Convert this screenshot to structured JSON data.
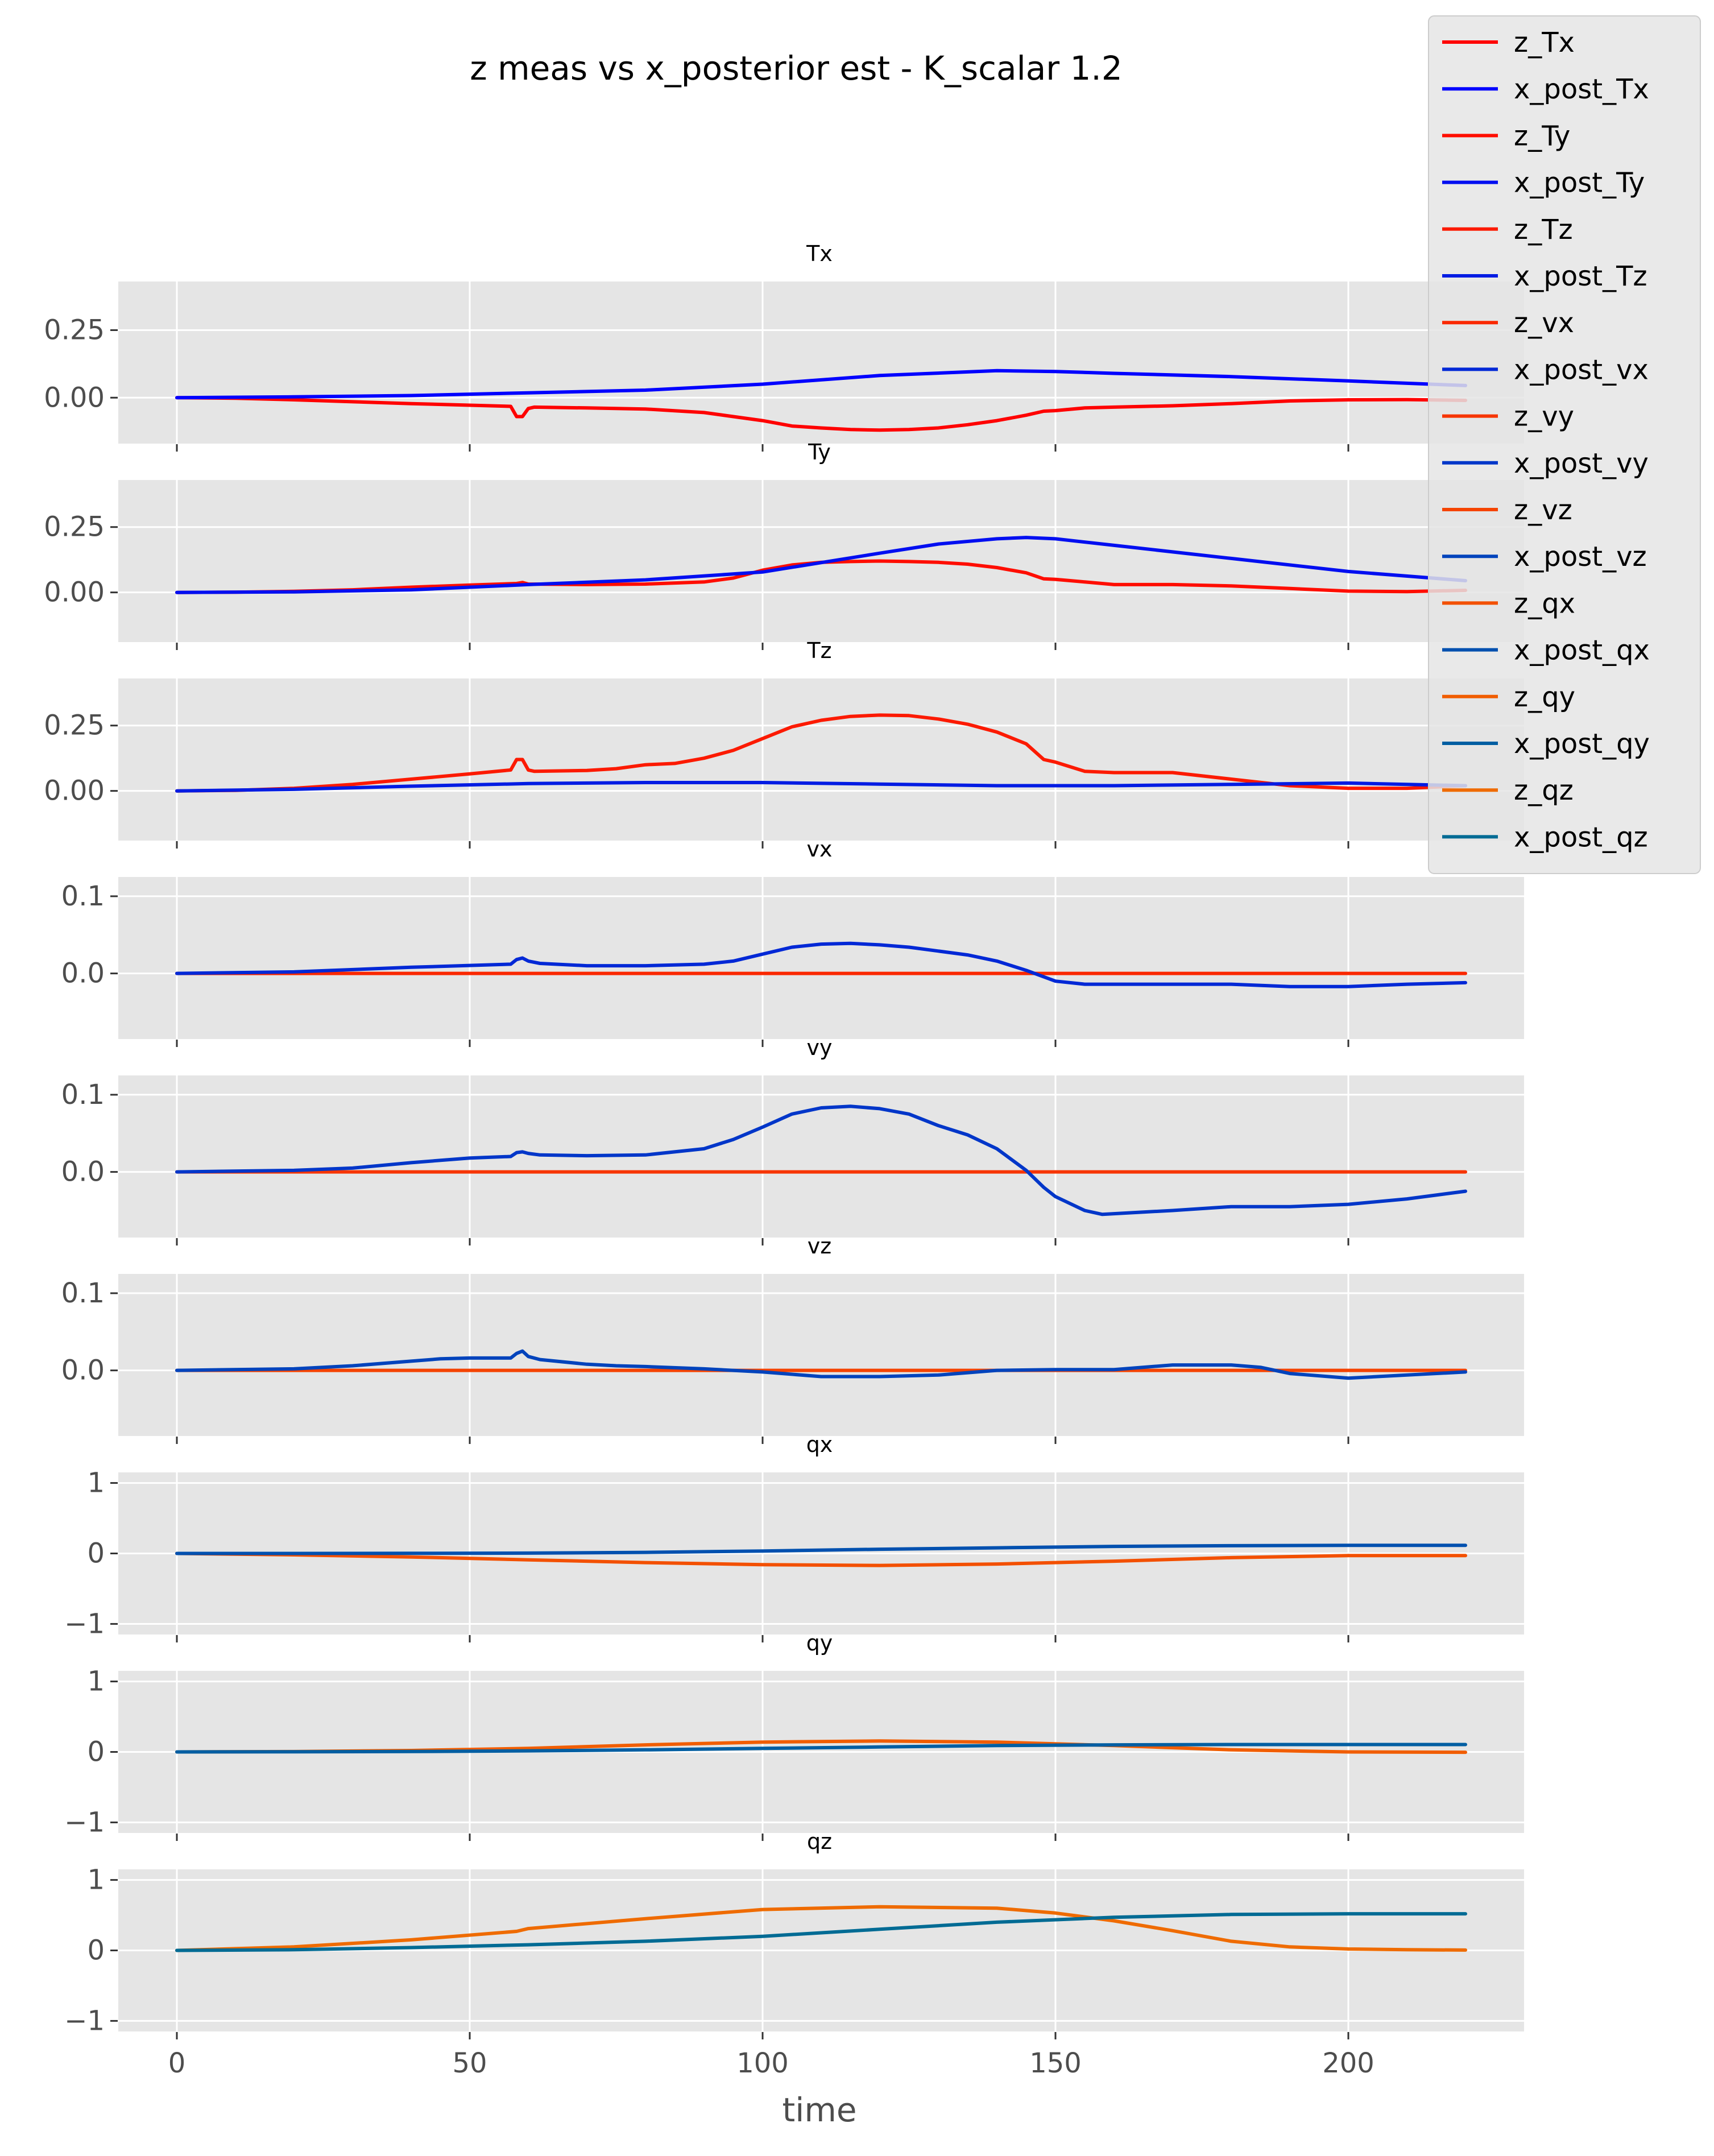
{
  "title": "z meas vs x_posterior est - K_scalar 1.2",
  "xlabel": "time",
  "colors": {
    "z_Tx": "#ff0000",
    "x_post_Tx": "#0000ff",
    "z_Ty": "#ff0d00",
    "x_post_Ty": "#000ef1",
    "z_Tz": "#fc1a00",
    "x_post_Tz": "#001be3",
    "z_vx": "#fa2800",
    "x_post_vx": "#0028d6",
    "z_vy": "#f73500",
    "x_post_vy": "#0036c9",
    "z_vz": "#f54300",
    "x_post_vz": "#0043bc",
    "z_qx": "#f35000",
    "x_post_qx": "#0050af",
    "z_qy": "#f15d00",
    "x_post_qy": "#005ea2",
    "z_qz": "#ef6b00",
    "x_post_qz": "#006b94"
  },
  "chart_data": {
    "type": "line",
    "layout": "9 stacked subplots sharing x axis",
    "grid": true,
    "legend_position": "upper right",
    "legend": [
      "z_Tx",
      "x_post_Tx",
      "z_Ty",
      "x_post_Ty",
      "z_Tz",
      "x_post_Tz",
      "z_vx",
      "x_post_vx",
      "z_vy",
      "x_post_vy",
      "z_vz",
      "x_post_vz",
      "z_qx",
      "x_post_qx",
      "z_qy",
      "x_post_qy",
      "z_qz",
      "x_post_qz"
    ],
    "xlim": [
      -10,
      230
    ],
    "xticks": [
      0,
      50,
      100,
      150,
      200
    ],
    "xtick_labels": [
      "0",
      "50",
      "100",
      "150",
      "200"
    ],
    "subplots": [
      {
        "title": "Tx",
        "ylim": [
          -0.17,
          0.43
        ],
        "yticks": [
          0.0,
          0.25
        ],
        "ytick_labels": [
          "0.00",
          "0.25"
        ],
        "series": [
          {
            "name": "z_Tx",
            "x": [
              0,
              10,
              20,
              30,
              40,
              50,
              57,
              58,
              59,
              60,
              61,
              70,
              80,
              90,
              100,
              105,
              110,
              115,
              120,
              125,
              130,
              135,
              140,
              145,
              148,
              150,
              155,
              160,
              170,
              180,
              190,
              200,
              210,
              220
            ],
            "y": [
              0,
              -0.002,
              -0.008,
              -0.015,
              -0.022,
              -0.028,
              -0.032,
              -0.07,
              -0.07,
              -0.04,
              -0.035,
              -0.038,
              -0.042,
              -0.055,
              -0.085,
              -0.105,
              -0.112,
              -0.118,
              -0.12,
              -0.118,
              -0.112,
              -0.1,
              -0.085,
              -0.065,
              -0.05,
              -0.048,
              -0.038,
              -0.035,
              -0.03,
              -0.022,
              -0.012,
              -0.008,
              -0.007,
              -0.01
            ]
          },
          {
            "name": "x_post_Tx",
            "x": [
              0,
              20,
              40,
              60,
              80,
              100,
              120,
              140,
              150,
              160,
              180,
              200,
              220
            ],
            "y": [
              0,
              0.003,
              0.008,
              0.018,
              0.028,
              0.05,
              0.082,
              0.1,
              0.097,
              0.09,
              0.078,
              0.062,
              0.045
            ]
          }
        ]
      },
      {
        "title": "Ty",
        "ylim": [
          -0.19,
          0.43
        ],
        "yticks": [
          0.0,
          0.25
        ],
        "ytick_labels": [
          "0.00",
          "0.25"
        ],
        "series": [
          {
            "name": "z_Ty",
            "x": [
              0,
              10,
              20,
              30,
              40,
              50,
              58,
              59,
              60,
              70,
              80,
              90,
              95,
              100,
              105,
              110,
              115,
              120,
              125,
              130,
              135,
              140,
              145,
              148,
              150,
              155,
              160,
              170,
              180,
              190,
              200,
              210,
              220
            ],
            "y": [
              0,
              0.001,
              0.004,
              0.01,
              0.02,
              0.028,
              0.034,
              0.038,
              0.032,
              0.03,
              0.032,
              0.04,
              0.055,
              0.085,
              0.105,
              0.115,
              0.118,
              0.12,
              0.118,
              0.115,
              0.108,
              0.095,
              0.075,
              0.052,
              0.05,
              0.04,
              0.03,
              0.03,
              0.025,
              0.015,
              0.005,
              0.003,
              0.008
            ]
          },
          {
            "name": "x_post_Ty",
            "x": [
              0,
              20,
              40,
              60,
              80,
              100,
              120,
              130,
              140,
              145,
              150,
              160,
              180,
              200,
              220
            ],
            "y": [
              0,
              0.002,
              0.01,
              0.03,
              0.048,
              0.078,
              0.15,
              0.185,
              0.205,
              0.21,
              0.205,
              0.18,
              0.13,
              0.08,
              0.045
            ]
          }
        ]
      },
      {
        "title": "Tz",
        "ylim": [
          -0.19,
          0.43
        ],
        "yticks": [
          0.0,
          0.25
        ],
        "ytick_labels": [
          "0.00",
          "0.25"
        ],
        "series": [
          {
            "name": "z_Tz",
            "x": [
              0,
              10,
              20,
              30,
              40,
              50,
              57,
              58,
              59,
              60,
              61,
              70,
              75,
              80,
              85,
              90,
              95,
              100,
              105,
              110,
              115,
              120,
              125,
              130,
              135,
              140,
              145,
              148,
              150,
              155,
              160,
              170,
              180,
              190,
              200,
              210,
              220
            ],
            "y": [
              0,
              0.002,
              0.01,
              0.025,
              0.045,
              0.065,
              0.08,
              0.12,
              0.12,
              0.08,
              0.075,
              0.078,
              0.085,
              0.1,
              0.105,
              0.125,
              0.155,
              0.2,
              0.245,
              0.27,
              0.285,
              0.29,
              0.288,
              0.275,
              0.255,
              0.225,
              0.18,
              0.12,
              0.11,
              0.075,
              0.07,
              0.07,
              0.045,
              0.02,
              0.01,
              0.01,
              0.02
            ]
          },
          {
            "name": "x_post_Tz",
            "x": [
              0,
              20,
              40,
              60,
              80,
              100,
              120,
              140,
              160,
              180,
              200,
              220
            ],
            "y": [
              0,
              0.006,
              0.018,
              0.028,
              0.032,
              0.032,
              0.026,
              0.02,
              0.02,
              0.025,
              0.03,
              0.02
            ]
          }
        ]
      },
      {
        "title": "vx",
        "ylim": [
          -0.085,
          0.125
        ],
        "yticks": [
          0.0,
          0.1
        ],
        "ytick_labels": [
          "0.0",
          "0.1"
        ],
        "series": [
          {
            "name": "z_vx",
            "x": [
              0,
              220
            ],
            "y": [
              0,
              0
            ]
          },
          {
            "name": "x_post_vx",
            "x": [
              0,
              20,
              40,
              57,
              58,
              59,
              60,
              62,
              70,
              80,
              90,
              95,
              100,
              105,
              110,
              115,
              120,
              125,
              130,
              135,
              140,
              145,
              150,
              155,
              160,
              170,
              180,
              190,
              200,
              210,
              220
            ],
            "y": [
              0,
              0.002,
              0.008,
              0.012,
              0.018,
              0.02,
              0.016,
              0.013,
              0.01,
              0.01,
              0.012,
              0.016,
              0.025,
              0.034,
              0.038,
              0.039,
              0.037,
              0.034,
              0.029,
              0.024,
              0.016,
              0.004,
              -0.01,
              -0.014,
              -0.014,
              -0.014,
              -0.014,
              -0.017,
              -0.017,
              -0.014,
              -0.012
            ]
          }
        ]
      },
      {
        "title": "vy",
        "ylim": [
          -0.085,
          0.125
        ],
        "yticks": [
          0.0,
          0.1
        ],
        "ytick_labels": [
          "0.0",
          "0.1"
        ],
        "series": [
          {
            "name": "z_vy",
            "x": [
              0,
              220
            ],
            "y": [
              0,
              0
            ]
          },
          {
            "name": "x_post_vy",
            "x": [
              0,
              20,
              30,
              40,
              50,
              57,
              58,
              59,
              60,
              62,
              70,
              80,
              90,
              95,
              100,
              105,
              110,
              115,
              120,
              125,
              130,
              135,
              140,
              145,
              148,
              150,
              155,
              158,
              165,
              170,
              180,
              190,
              200,
              210,
              220
            ],
            "y": [
              0,
              0.002,
              0.005,
              0.012,
              0.018,
              0.02,
              0.025,
              0.026,
              0.024,
              0.022,
              0.021,
              0.022,
              0.03,
              0.042,
              0.058,
              0.075,
              0.083,
              0.085,
              0.082,
              0.075,
              0.06,
              0.048,
              0.03,
              0.002,
              -0.02,
              -0.032,
              -0.05,
              -0.055,
              -0.052,
              -0.05,
              -0.045,
              -0.045,
              -0.042,
              -0.035,
              -0.025
            ]
          }
        ]
      },
      {
        "title": "vz",
        "ylim": [
          -0.085,
          0.125
        ],
        "yticks": [
          0.0,
          0.1
        ],
        "ytick_labels": [
          "0.0",
          "0.1"
        ],
        "series": [
          {
            "name": "z_vz",
            "x": [
              0,
              220
            ],
            "y": [
              0,
              0
            ]
          },
          {
            "name": "x_post_vz",
            "x": [
              0,
              20,
              30,
              40,
              45,
              50,
              57,
              58,
              59,
              60,
              62,
              70,
              75,
              80,
              90,
              100,
              110,
              120,
              130,
              140,
              150,
              160,
              170,
              180,
              185,
              190,
              200,
              210,
              220
            ],
            "y": [
              0,
              0.002,
              0.006,
              0.012,
              0.015,
              0.016,
              0.016,
              0.022,
              0.025,
              0.018,
              0.014,
              0.008,
              0.006,
              0.005,
              0.002,
              -0.002,
              -0.008,
              -0.008,
              -0.006,
              0.0,
              0.001,
              0.001,
              0.007,
              0.007,
              0.004,
              -0.004,
              -0.01,
              -0.006,
              -0.002
            ]
          }
        ]
      },
      {
        "title": "qx",
        "ylim": [
          -1.15,
          1.15
        ],
        "yticks": [
          -1,
          0,
          1
        ],
        "ytick_labels": [
          "−1",
          "0",
          "1"
        ],
        "series": [
          {
            "name": "z_qx",
            "x": [
              0,
              20,
              40,
              60,
              80,
              100,
              120,
              140,
              160,
              180,
              200,
              220
            ],
            "y": [
              0,
              -0.02,
              -0.05,
              -0.09,
              -0.13,
              -0.16,
              -0.17,
              -0.15,
              -0.11,
              -0.06,
              -0.03,
              -0.03
            ]
          },
          {
            "name": "x_post_qx",
            "x": [
              0,
              20,
              40,
              60,
              80,
              100,
              120,
              140,
              160,
              180,
              200,
              220
            ],
            "y": [
              0,
              0.0,
              0.002,
              0.005,
              0.015,
              0.035,
              0.06,
              0.08,
              0.1,
              0.11,
              0.115,
              0.115
            ]
          }
        ]
      },
      {
        "title": "qy",
        "ylim": [
          -1.15,
          1.15
        ],
        "yticks": [
          -1,
          0,
          1
        ],
        "ytick_labels": [
          "−1",
          "0",
          "1"
        ],
        "series": [
          {
            "name": "z_qy",
            "x": [
              0,
              20,
              40,
              60,
              80,
              100,
              120,
              140,
              160,
              180,
              200,
              220
            ],
            "y": [
              0,
              0.005,
              0.02,
              0.05,
              0.1,
              0.14,
              0.155,
              0.14,
              0.09,
              0.03,
              0.0,
              -0.005
            ]
          },
          {
            "name": "x_post_qy",
            "x": [
              0,
              20,
              40,
              60,
              80,
              100,
              120,
              140,
              160,
              180,
              200,
              220
            ],
            "y": [
              0,
              0.002,
              0.006,
              0.015,
              0.03,
              0.05,
              0.07,
              0.09,
              0.1,
              0.105,
              0.105,
              0.105
            ]
          }
        ]
      },
      {
        "title": "qz",
        "ylim": [
          -1.15,
          1.15
        ],
        "yticks": [
          -1,
          0,
          1
        ],
        "ytick_labels": [
          "−1",
          "0",
          "1"
        ],
        "series": [
          {
            "name": "z_qz",
            "x": [
              0,
              20,
              40,
              58,
              60,
              80,
              100,
              120,
              140,
              150,
              160,
              170,
              180,
              190,
              200,
              210,
              220
            ],
            "y": [
              0,
              0.05,
              0.15,
              0.27,
              0.31,
              0.45,
              0.58,
              0.62,
              0.6,
              0.53,
              0.42,
              0.28,
              0.13,
              0.05,
              0.02,
              0.01,
              0.005
            ]
          },
          {
            "name": "x_post_qz",
            "x": [
              0,
              20,
              40,
              60,
              80,
              100,
              120,
              140,
              160,
              180,
              200,
              220
            ],
            "y": [
              0,
              0.01,
              0.04,
              0.08,
              0.13,
              0.2,
              0.3,
              0.4,
              0.47,
              0.51,
              0.52,
              0.52
            ]
          }
        ]
      }
    ]
  }
}
